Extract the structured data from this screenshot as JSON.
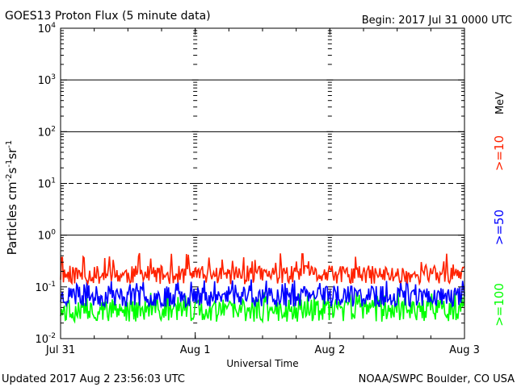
{
  "header": {
    "title": "GOES13 Proton Flux (5 minute data)",
    "begin": "Begin: 2017 Jul 31 0000 UTC"
  },
  "footer": {
    "updated": "Updated 2017 Aug  2 23:56:03 UTC",
    "credit": "NOAA/SWPC Boulder, CO USA"
  },
  "chart_data": {
    "type": "line",
    "title": "GOES13 Proton Flux (5 minute data)",
    "xlabel": "Universal Time",
    "ylabel": "Particles cm-2s-1sr-1",
    "yscale": "log",
    "ylim": [
      0.01,
      10000
    ],
    "xlim_days": [
      0,
      3
    ],
    "x_ticks": [
      {
        "day": 0,
        "label": "Jul 31"
      },
      {
        "day": 1,
        "label": "Aug 1"
      },
      {
        "day": 2,
        "label": "Aug 2"
      },
      {
        "day": 3,
        "label": "Aug 3"
      }
    ],
    "y_ticks": [
      {
        "value": 0.01,
        "base": "10",
        "exp": "-2"
      },
      {
        "value": 0.1,
        "base": "10",
        "exp": "-1"
      },
      {
        "value": 1,
        "base": "10",
        "exp": "0"
      },
      {
        "value": 10,
        "base": "10",
        "exp": "1"
      },
      {
        "value": 100,
        "base": "10",
        "exp": "2"
      },
      {
        "value": 1000,
        "base": "10",
        "exp": "3"
      },
      {
        "value": 10000,
        "base": "10",
        "exp": "4"
      }
    ],
    "thresholds": [
      {
        "value": 10,
        "style": "dashed"
      },
      {
        "value": 1,
        "style": "solid"
      },
      {
        "value": 100,
        "style": "solid"
      },
      {
        "value": 1000,
        "style": "solid"
      }
    ],
    "grid": "major lines at day boundaries",
    "legend_position": "right",
    "legend_unit": "MeV",
    "series": [
      {
        "name": ">=10",
        "color": "#ff2200",
        "baseline": 0.17,
        "spread": 0.18,
        "spike_max": 0.45,
        "seed": 11
      },
      {
        "name": ">=50",
        "color": "#0000ff",
        "baseline": 0.065,
        "spread": 0.2,
        "spike_max": 0.14,
        "seed": 23
      },
      {
        "name": ">=100",
        "color": "#00ff00",
        "baseline": 0.035,
        "spread": 0.22,
        "spike_max": 0.085,
        "seed": 37
      }
    ]
  }
}
